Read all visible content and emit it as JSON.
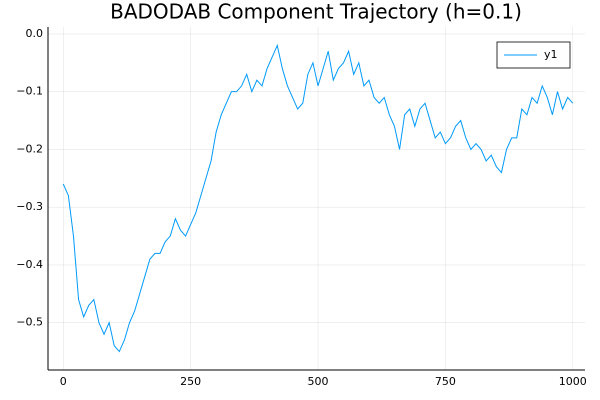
{
  "chart_data": {
    "type": "line",
    "title": "BADODAB Component Trajectory (h=0.1)",
    "x": [
      0,
      10,
      20,
      30,
      40,
      50,
      60,
      70,
      80,
      90,
      100,
      110,
      120,
      130,
      140,
      150,
      160,
      170,
      180,
      190,
      200,
      210,
      220,
      230,
      240,
      250,
      260,
      270,
      280,
      290,
      300,
      310,
      320,
      330,
      340,
      350,
      360,
      370,
      380,
      390,
      400,
      410,
      420,
      430,
      440,
      450,
      460,
      470,
      480,
      490,
      500,
      510,
      520,
      530,
      540,
      550,
      560,
      570,
      580,
      590,
      600,
      610,
      620,
      630,
      640,
      650,
      660,
      670,
      680,
      690,
      700,
      710,
      720,
      730,
      740,
      750,
      760,
      770,
      780,
      790,
      800,
      810,
      820,
      830,
      840,
      850,
      860,
      870,
      880,
      890,
      900,
      910,
      920,
      930,
      940,
      950,
      960,
      970,
      980,
      990,
      1000
    ],
    "series": [
      {
        "name": "y1",
        "color": "#009af9",
        "values": [
          -0.26,
          -0.28,
          -0.35,
          -0.46,
          -0.49,
          -0.47,
          -0.46,
          -0.5,
          -0.52,
          -0.5,
          -0.54,
          -0.55,
          -0.53,
          -0.5,
          -0.48,
          -0.45,
          -0.42,
          -0.39,
          -0.38,
          -0.38,
          -0.36,
          -0.35,
          -0.32,
          -0.34,
          -0.35,
          -0.33,
          -0.31,
          -0.28,
          -0.25,
          -0.22,
          -0.17,
          -0.14,
          -0.12,
          -0.1,
          -0.1,
          -0.09,
          -0.07,
          -0.1,
          -0.08,
          -0.09,
          -0.06,
          -0.04,
          -0.02,
          -0.06,
          -0.09,
          -0.11,
          -0.13,
          -0.12,
          -0.07,
          -0.05,
          -0.09,
          -0.06,
          -0.03,
          -0.08,
          -0.06,
          -0.05,
          -0.03,
          -0.07,
          -0.05,
          -0.09,
          -0.08,
          -0.11,
          -0.12,
          -0.11,
          -0.14,
          -0.16,
          -0.2,
          -0.14,
          -0.13,
          -0.16,
          -0.13,
          -0.12,
          -0.15,
          -0.18,
          -0.17,
          -0.19,
          -0.18,
          -0.16,
          -0.15,
          -0.18,
          -0.2,
          -0.19,
          -0.2,
          -0.22,
          -0.21,
          -0.23,
          -0.24,
          -0.2,
          -0.18,
          -0.18,
          -0.13,
          -0.14,
          -0.11,
          -0.12,
          -0.09,
          -0.11,
          -0.14,
          -0.1,
          -0.13,
          -0.11,
          -0.12
        ]
      }
    ],
    "xlim": [
      -30,
      1024
    ],
    "xticks": [
      0,
      250,
      500,
      750,
      1000
    ],
    "ylim": [
      -0.582,
      0.012
    ],
    "yticks": [
      {
        "value": 0,
        "label": "0.0"
      },
      {
        "value": -0.1,
        "label": "−0.1"
      },
      {
        "value": -0.2,
        "label": "−0.2"
      },
      {
        "value": -0.3,
        "label": "−0.3"
      },
      {
        "value": -0.4,
        "label": "−0.4"
      },
      {
        "value": -0.5,
        "label": "−0.5"
      }
    ],
    "grid": true,
    "legend": "top-right"
  }
}
